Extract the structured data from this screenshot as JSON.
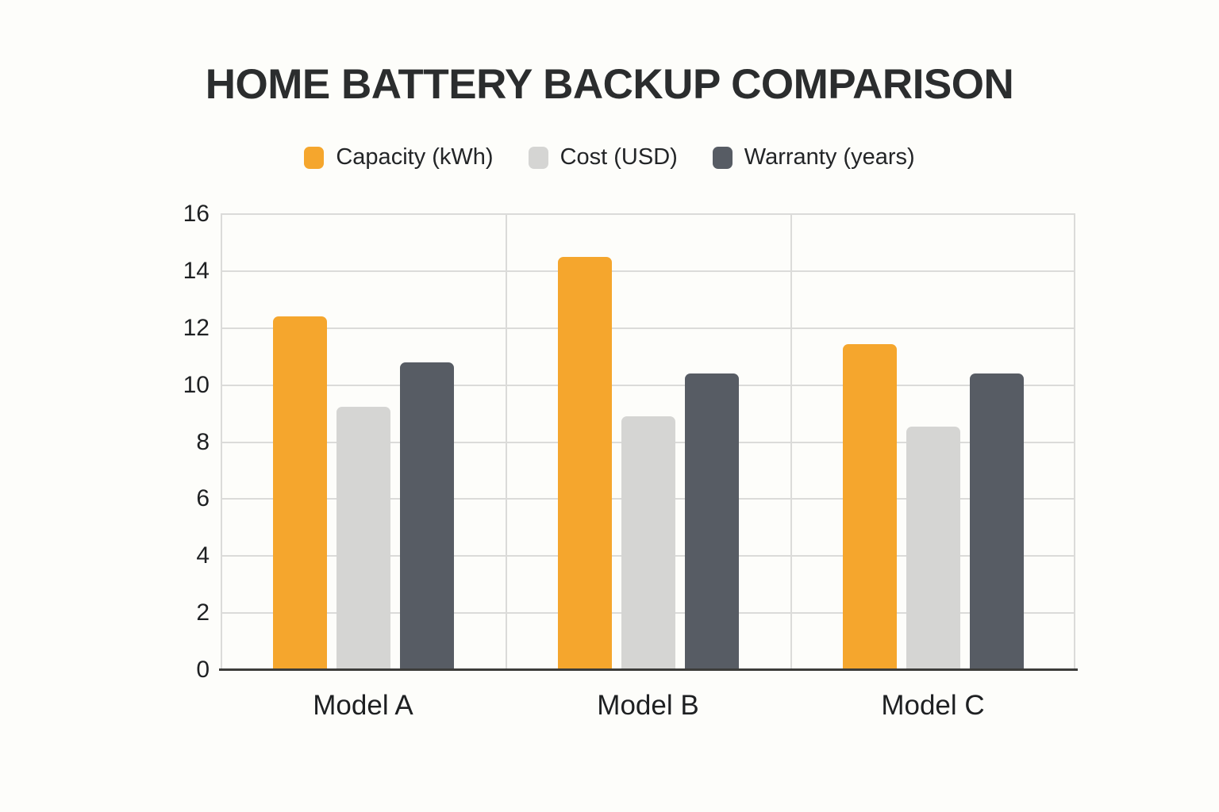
{
  "chart_data": {
    "type": "bar",
    "title": "HOME BATTERY BACKUP COMPARISON",
    "categories": [
      "Model A",
      "Model B",
      "Model C"
    ],
    "series": [
      {
        "name": "Capacity (kWh)",
        "color": "#F5A62D",
        "values": [
          12.4,
          14.5,
          11.45
        ]
      },
      {
        "name": "Cost (USD)",
        "color": "#D5D5D3",
        "values": [
          9.25,
          8.9,
          8.55
        ]
      },
      {
        "name": "Warranty (years)",
        "color": "#575C64",
        "values": [
          10.8,
          10.4,
          10.4
        ]
      }
    ],
    "ylim": [
      0,
      16
    ],
    "yticks": [
      0,
      2,
      4,
      6,
      8,
      10,
      12,
      14,
      16
    ],
    "xlabel": "",
    "ylabel": "",
    "grid": true,
    "legend_position": "top",
    "colors": {
      "background": "#FDFDFA",
      "gridline": "#DBDBD9",
      "axis_line": "#3C3C3A",
      "title_text": "#2B2D2E",
      "tick_text": "#1E2022"
    }
  }
}
